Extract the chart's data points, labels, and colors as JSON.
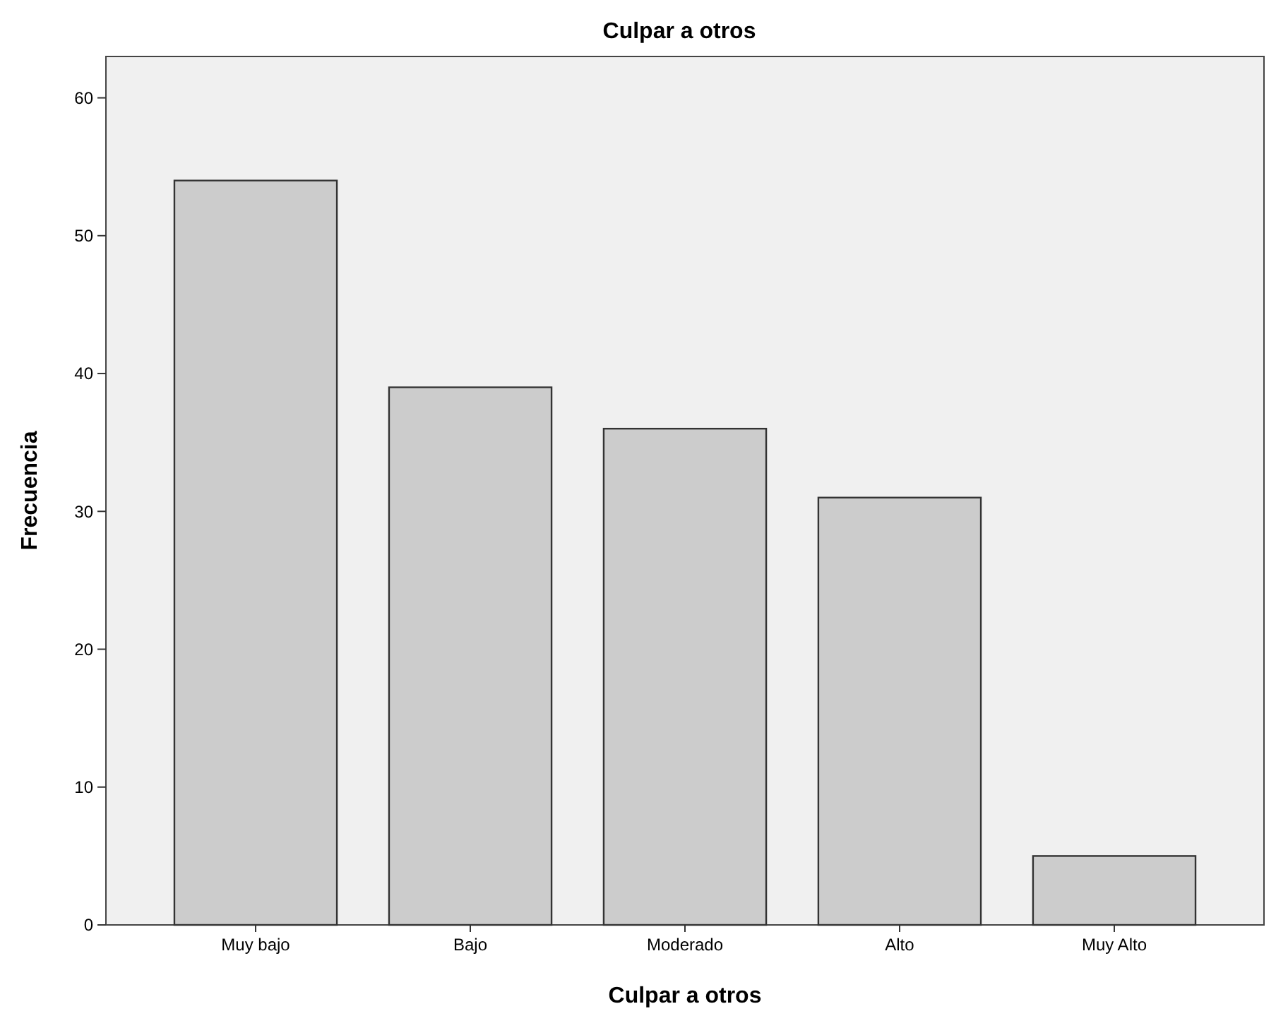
{
  "chart_data": {
    "type": "bar",
    "title": "Culpar a otros",
    "xlabel": "Culpar a otros",
    "ylabel": "Frecuencia",
    "categories": [
      "Muy bajo",
      "Bajo",
      "Moderado",
      "Alto",
      "Muy Alto"
    ],
    "values": [
      54,
      39,
      36,
      31,
      5
    ],
    "color": "#cccccc",
    "ylim": [
      0,
      63
    ],
    "yticks": [
      0,
      10,
      20,
      30,
      40,
      50,
      60
    ],
    "grid": false
  }
}
